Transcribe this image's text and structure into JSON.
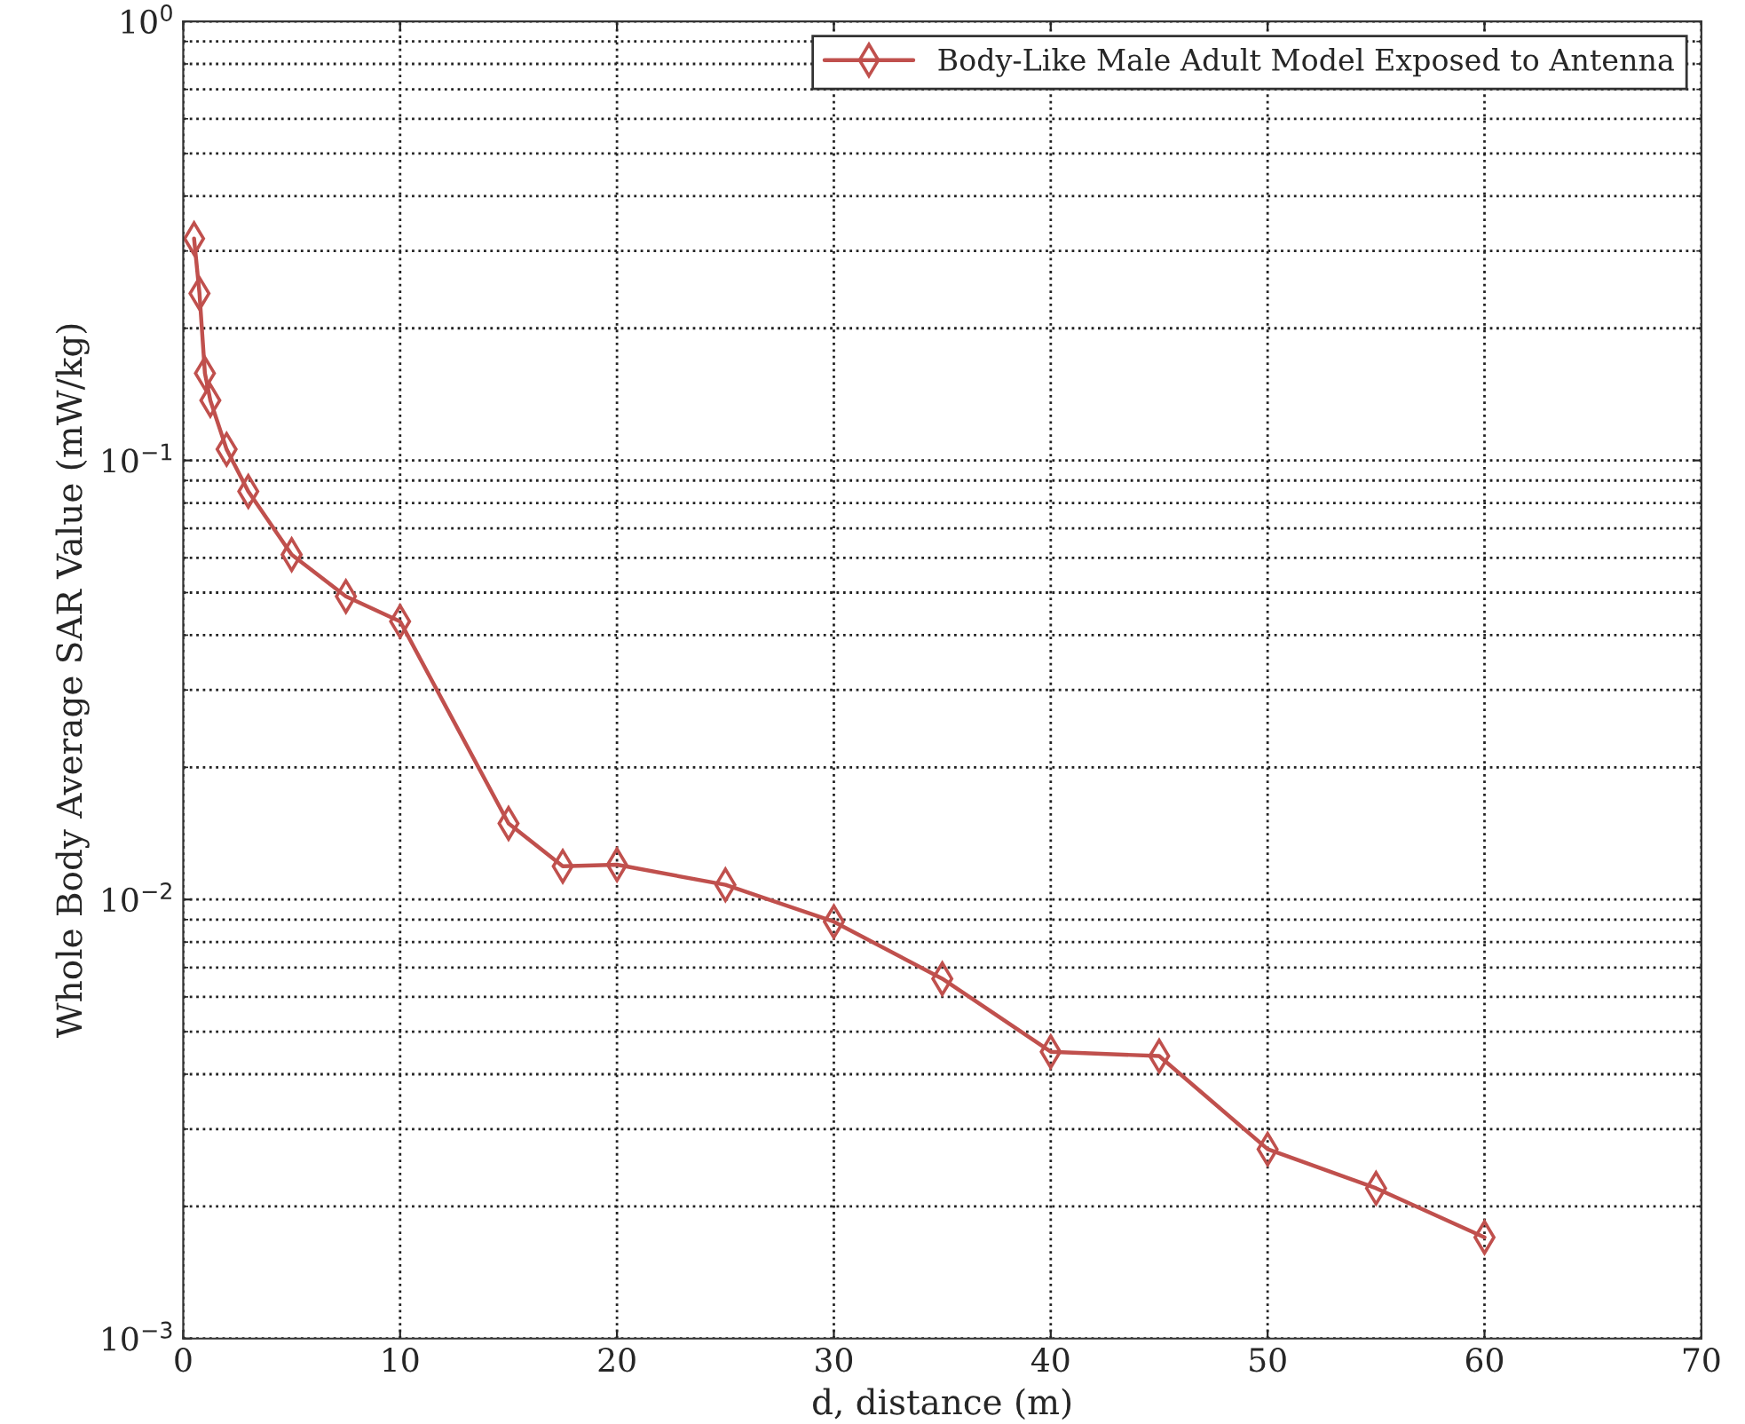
{
  "chart_data": {
    "type": "line",
    "xlabel": "d, distance (m)",
    "ylabel": "Whole Body Average SAR Value (mW/kg)",
    "x": [
      0.5,
      0.75,
      1,
      1.25,
      2,
      3,
      5,
      7.5,
      10,
      15,
      17.5,
      20,
      25,
      30,
      35,
      40,
      45,
      50,
      55,
      60
    ],
    "series": [
      {
        "name": "Body-Like Male Adult Model Exposed to Antenna",
        "color": "#c0504d",
        "values": [
          0.32,
          0.24,
          0.158,
          0.137,
          0.106,
          0.085,
          0.061,
          0.049,
          0.043,
          0.0149,
          0.0119,
          0.012,
          0.0108,
          0.0089,
          0.0066,
          0.0045,
          0.0044,
          0.0027,
          0.0022,
          0.0017
        ]
      }
    ],
    "log": "y",
    "xlim": [
      0,
      70
    ],
    "xticks": [
      0,
      10,
      20,
      30,
      40,
      50,
      60,
      70
    ],
    "ylim": [
      0.001,
      1
    ],
    "yticks": [
      {
        "value": 0.001,
        "label": "10$^{−3}$"
      },
      {
        "value": 0.01,
        "label": "10$^{−2}$"
      },
      {
        "value": 0.1,
        "label": "10$^{−1}$"
      },
      {
        "value": 1,
        "label": "10$^{0}$"
      }
    ],
    "grid": true,
    "legend": "top right",
    "marker": "diamond",
    "line_style": "solid"
  }
}
